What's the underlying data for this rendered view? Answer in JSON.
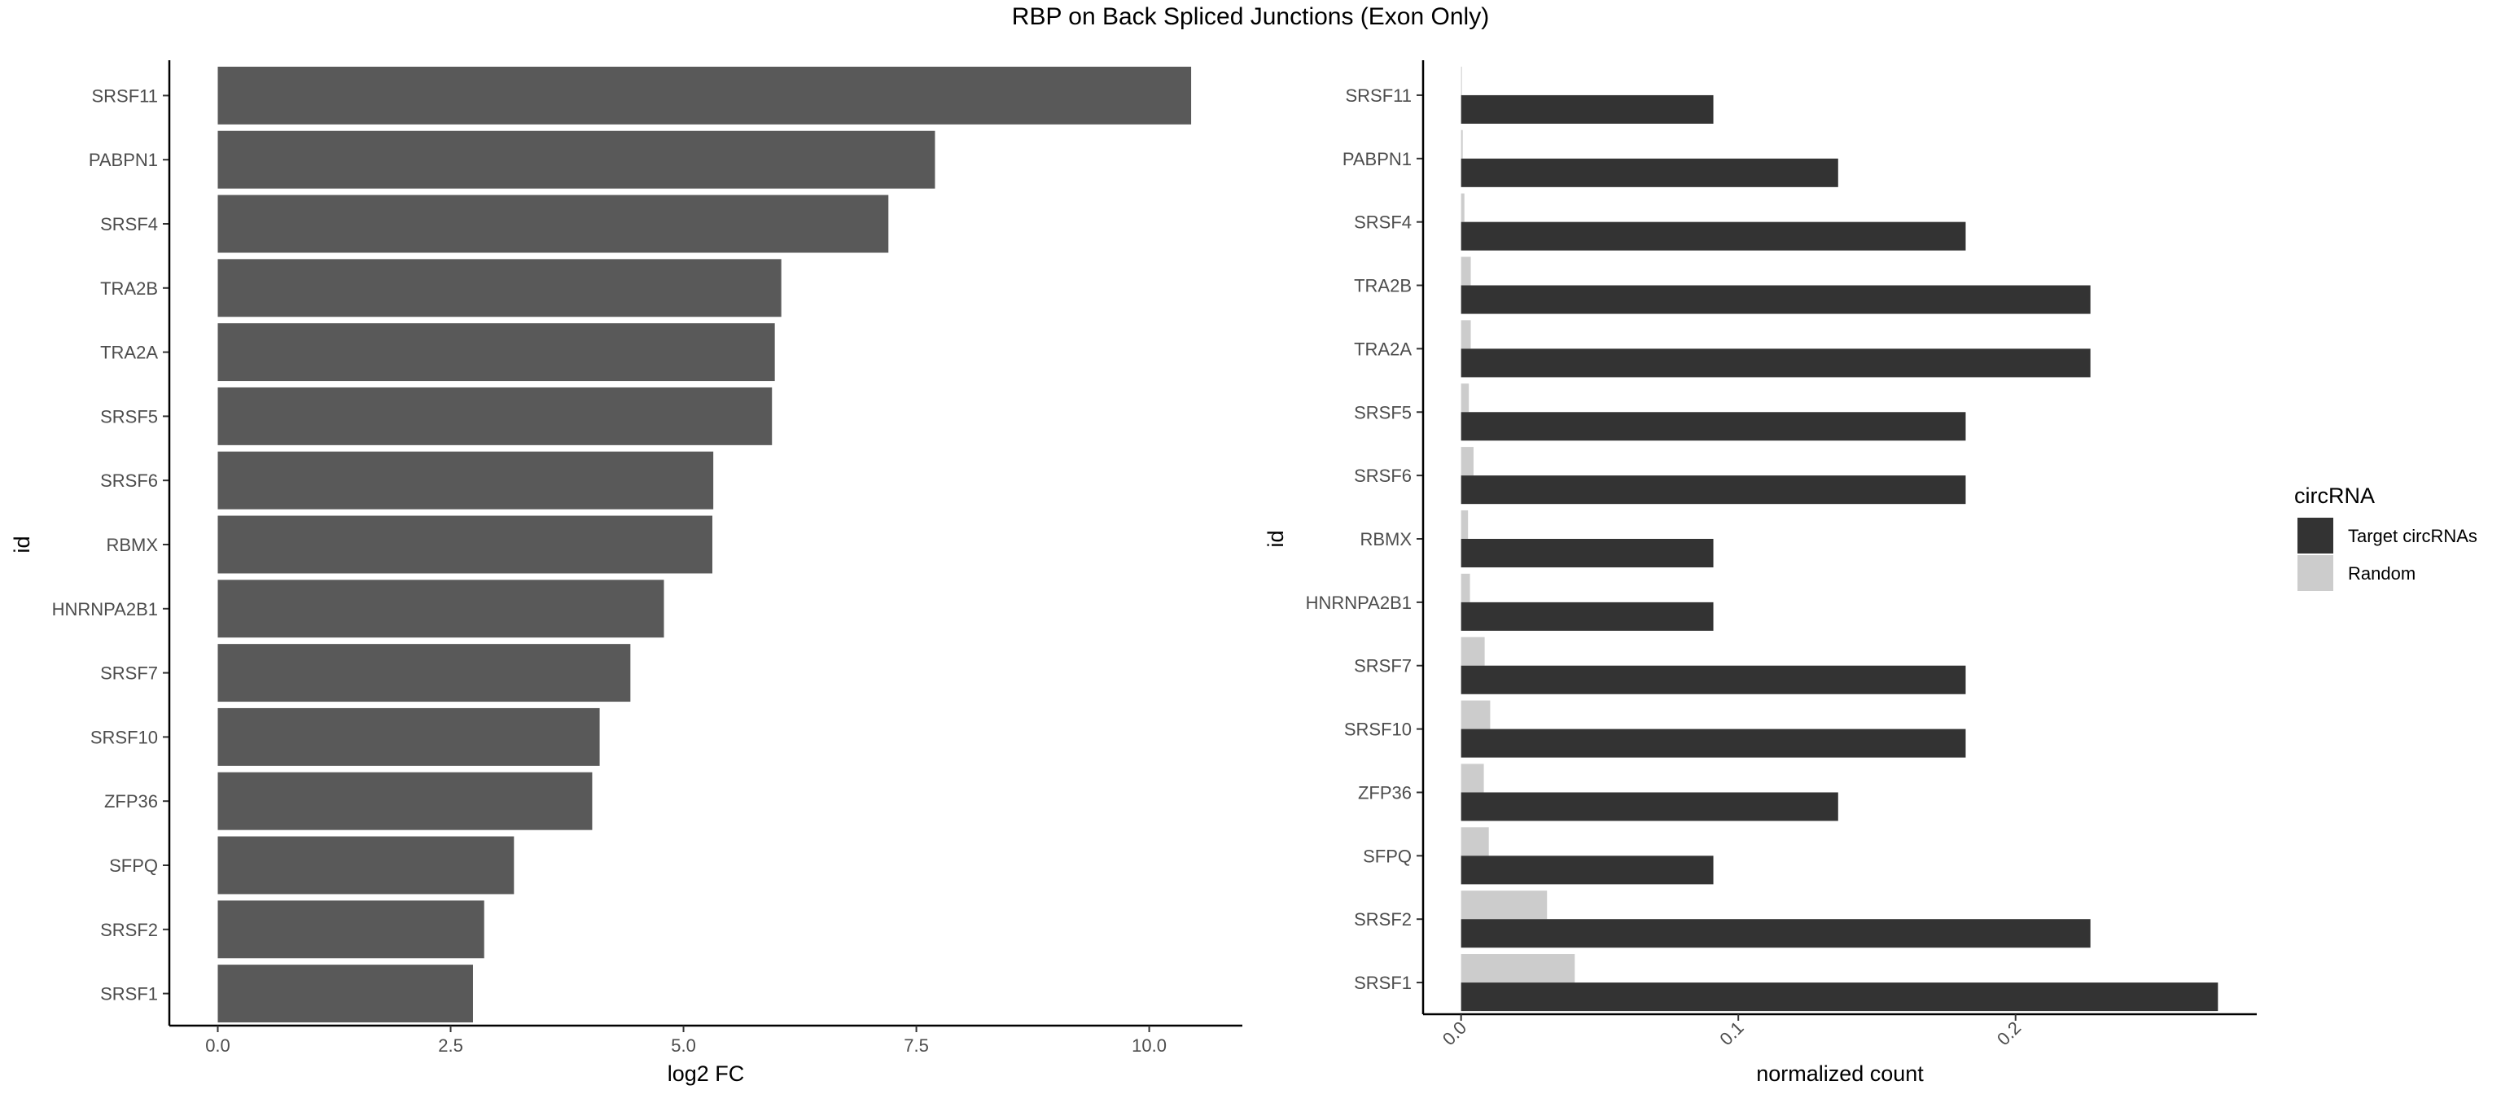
{
  "page_title": "RBP on Back Spliced Junctions (Exon Only)",
  "chart_data": [
    {
      "type": "bar",
      "orientation": "horizontal",
      "categories": [
        "SRSF11",
        "PABPN1",
        "SRSF4",
        "TRA2B",
        "TRA2A",
        "SRSF5",
        "SRSF6",
        "RBMX",
        "HNRNPA2B1",
        "SRSF7",
        "SRSF10",
        "ZFP36",
        "SFPQ",
        "SRSF2",
        "SRSF1"
      ],
      "values": [
        10.45,
        7.7,
        7.2,
        6.05,
        5.98,
        5.95,
        5.32,
        5.31,
        4.79,
        4.43,
        4.1,
        4.02,
        3.18,
        2.86,
        2.74
      ],
      "xlabel": "log2 FC",
      "ylabel": "id",
      "xlim": [
        -0.52,
        11.0
      ],
      "xticks": [
        "0.0",
        "2.5",
        "5.0",
        "7.5",
        "10.0"
      ],
      "xtick_values": [
        0,
        2.5,
        5.0,
        7.5,
        10.0
      ],
      "bar_color": "#595959",
      "grid": false
    },
    {
      "type": "bar",
      "orientation": "horizontal",
      "grouped": true,
      "categories": [
        "SRSF11",
        "PABPN1",
        "SRSF4",
        "TRA2B",
        "TRA2A",
        "SRSF5",
        "SRSF6",
        "RBMX",
        "HNRNPA2B1",
        "SRSF7",
        "SRSF10",
        "ZFP36",
        "SFPQ",
        "SRSF2",
        "SRSF1"
      ],
      "series": [
        {
          "name": "Target circRNAs",
          "color": "#333333",
          "values": [
            0.091,
            0.136,
            0.182,
            0.227,
            0.227,
            0.182,
            0.182,
            0.091,
            0.091,
            0.182,
            0.182,
            0.136,
            0.091,
            0.227,
            0.273
          ]
        },
        {
          "name": "Random",
          "color": "#cccccc",
          "values": [
            0.0003,
            0.0006,
            0.0012,
            0.0035,
            0.0035,
            0.0028,
            0.0045,
            0.0025,
            0.0032,
            0.0085,
            0.0105,
            0.0082,
            0.01,
            0.031,
            0.041
          ]
        }
      ],
      "xlabel": "normalized count",
      "ylabel": "id",
      "xlim": [
        -0.0137,
        0.287
      ],
      "xticks": [
        "0.0",
        "0.1",
        "0.2"
      ],
      "xtick_values": [
        0,
        0.1,
        0.2
      ],
      "legend_title": "circRNA",
      "legend_position": "right",
      "grid": false
    }
  ]
}
